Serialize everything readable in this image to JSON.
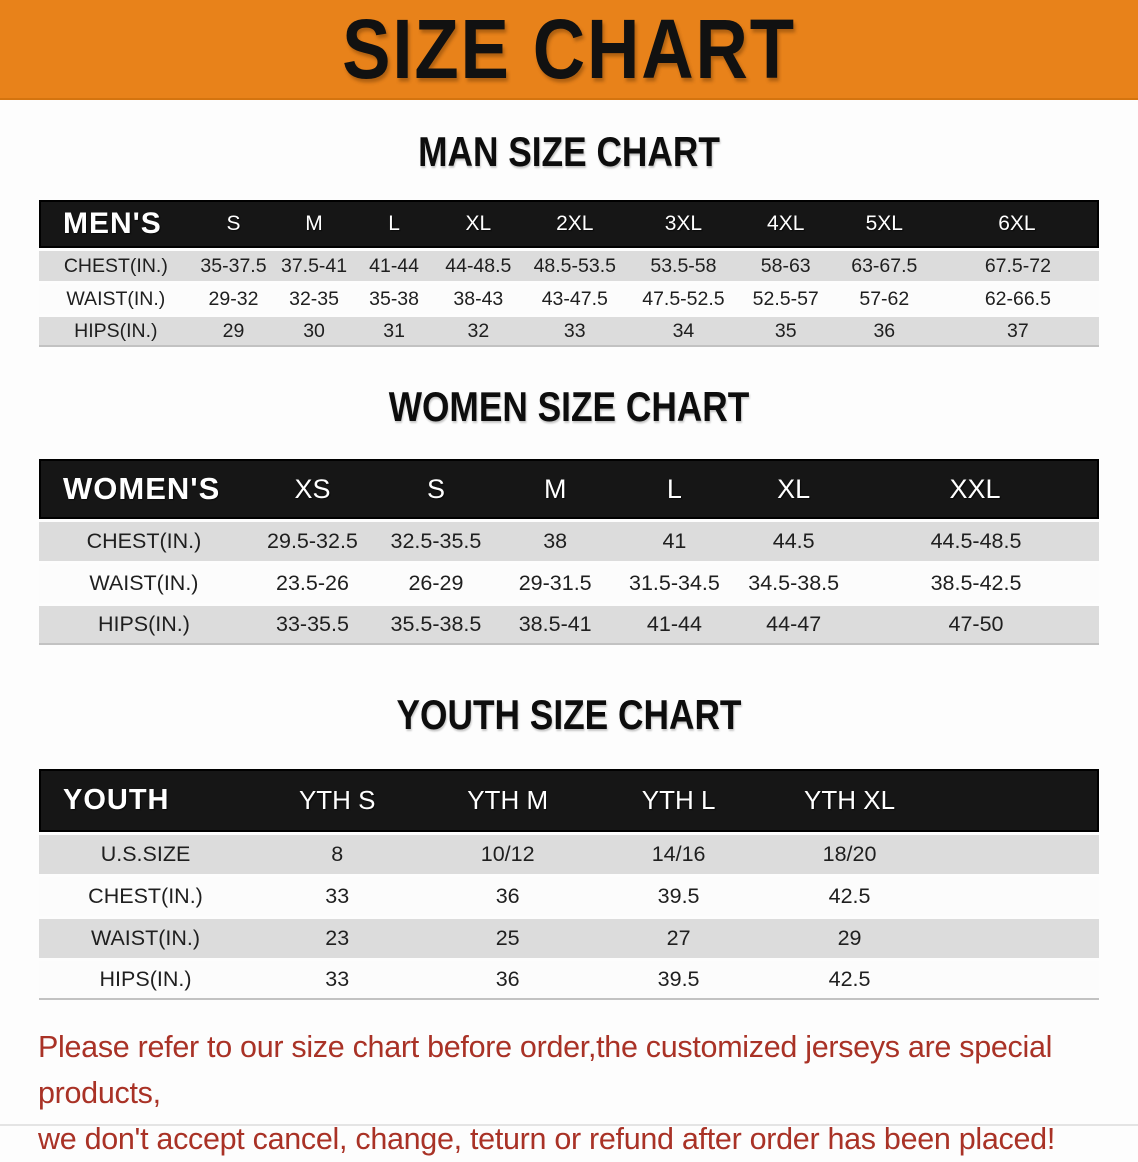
{
  "banner": {
    "title": "SIZE CHART",
    "bg_color": "#E8821A",
    "text_color": "#111111"
  },
  "sections": [
    {
      "heading": "MAN SIZE CHART",
      "table": {
        "corner_label": "MEN'S",
        "sizes": [
          "S",
          "M",
          "L",
          "XL",
          "2XL",
          "3XL",
          "4XL",
          "5XL",
          "6XL"
        ],
        "rows": [
          {
            "label": "CHEST(IN.)",
            "values": [
              "35-37.5",
              "37.5-41",
              "41-44",
              "44-48.5",
              "48.5-53.5",
              "53.5-58",
              "58-63",
              "63-67.5",
              "67.5-72"
            ]
          },
          {
            "label": "WAIST(IN.)",
            "values": [
              "29-32",
              "32-35",
              "35-38",
              "38-43",
              "43-47.5",
              "47.5-52.5",
              "52.5-57",
              "57-62",
              "62-66.5"
            ]
          },
          {
            "label": "HIPS(IN.)",
            "values": [
              "29",
              "30",
              "31",
              "32",
              "33",
              "34",
              "35",
              "36",
              "37"
            ]
          }
        ]
      }
    },
    {
      "heading": "WOMEN SIZE CHART",
      "table": {
        "corner_label": "WOMEN'S",
        "sizes": [
          "XS",
          "S",
          "M",
          "L",
          "XL",
          "XXL"
        ],
        "rows": [
          {
            "label": "CHEST(IN.)",
            "values": [
              "29.5-32.5",
              "32.5-35.5",
              "38",
              "41",
              "44.5",
              "44.5-48.5"
            ]
          },
          {
            "label": "WAIST(IN.)",
            "values": [
              "23.5-26",
              "26-29",
              "29-31.5",
              "31.5-34.5",
              "34.5-38.5",
              "38.5-42.5"
            ]
          },
          {
            "label": "HIPS(IN.)",
            "values": [
              "33-35.5",
              "35.5-38.5",
              "38.5-41",
              "41-44",
              "44-47",
              "47-50"
            ]
          }
        ]
      }
    },
    {
      "heading": "YOUTH SIZE CHART",
      "table": {
        "corner_label": "YOUTH",
        "sizes": [
          "YTH S",
          "YTH M",
          "YTH L",
          "YTH XL"
        ],
        "trailing_blank": true,
        "rows": [
          {
            "label": "U.S.SIZE",
            "values": [
              "8",
              "10/12",
              "14/16",
              "18/20"
            ]
          },
          {
            "label": "CHEST(IN.)",
            "values": [
              "33",
              "36",
              "39.5",
              "42.5"
            ]
          },
          {
            "label": "WAIST(IN.)",
            "values": [
              "23",
              "25",
              "27",
              "29"
            ]
          },
          {
            "label": "HIPS(IN.)",
            "values": [
              "33",
              "36",
              "39.5",
              "42.5"
            ]
          }
        ]
      }
    }
  ],
  "footer": {
    "line1": "Please refer to our size chart before order,the customized jerseys are special products,",
    "line2": "we don't accept cancel, change, teturn or refund after order has been placed!",
    "text_color": "#A93226"
  }
}
